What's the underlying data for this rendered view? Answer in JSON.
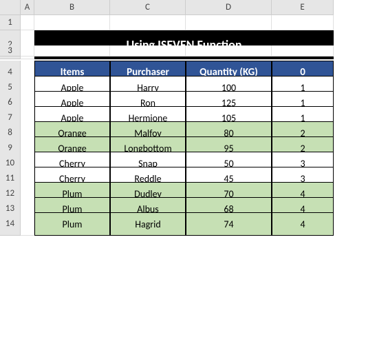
{
  "columns": [
    "A",
    "B",
    "C",
    "D",
    "E"
  ],
  "rowNumbers": [
    1,
    2,
    3,
    4,
    5,
    6,
    7,
    8,
    9,
    10,
    11,
    12,
    13,
    14
  ],
  "title": "Using ISEVEN Function",
  "headers": {
    "b": "Items",
    "c": "Purchaser",
    "d": "Quantity (KG)",
    "e": "0"
  },
  "rows": [
    {
      "item": "Apple",
      "purchaser": "Harry",
      "qty": "100",
      "grp": "1",
      "shaded": false
    },
    {
      "item": "Apple",
      "purchaser": "Ron",
      "qty": "125",
      "grp": "1",
      "shaded": false
    },
    {
      "item": "Apple",
      "purchaser": "Hermione",
      "qty": "105",
      "grp": "1",
      "shaded": false
    },
    {
      "item": "Orange",
      "purchaser": "Malfoy",
      "qty": "80",
      "grp": "2",
      "shaded": true
    },
    {
      "item": "Orange",
      "purchaser": "Longbottom",
      "qty": "95",
      "grp": "2",
      "shaded": true
    },
    {
      "item": "Cherry",
      "purchaser": "Snap",
      "qty": "50",
      "grp": "3",
      "shaded": false
    },
    {
      "item": "Cherry",
      "purchaser": "Reddle",
      "qty": "45",
      "grp": "3",
      "shaded": false
    },
    {
      "item": "Plum",
      "purchaser": "Dudley",
      "qty": "70",
      "grp": "4",
      "shaded": true
    },
    {
      "item": "Plum",
      "purchaser": "Albus",
      "qty": "68",
      "grp": "4",
      "shaded": true
    },
    {
      "item": "Plum",
      "purchaser": "Hagrid",
      "qty": "74",
      "grp": "4",
      "shaded": true
    }
  ],
  "colors": {
    "headerBg": "#305496",
    "headerFg": "#ffffff",
    "titleBg": "#000000",
    "titleFg": "#ffffff",
    "shadedBg": "#c6e0b4",
    "gridHead": "#e6e6e6",
    "border": "#000000"
  }
}
